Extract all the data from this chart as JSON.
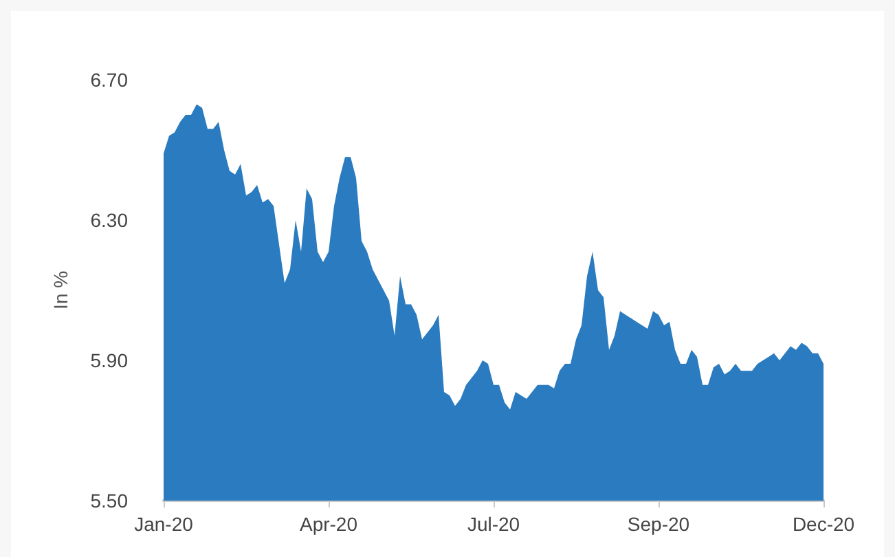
{
  "chart_data": {
    "type": "area",
    "ylabel": "In %",
    "categories": [
      "Jan-20",
      null,
      null,
      null,
      null,
      null,
      null,
      null,
      null,
      null,
      null,
      null,
      null,
      null,
      null,
      null,
      null,
      null,
      null,
      null,
      null,
      null,
      null,
      null,
      null,
      null,
      null,
      null,
      null,
      null,
      "Apr-20",
      null,
      null,
      null,
      null,
      null,
      null,
      null,
      null,
      null,
      null,
      null,
      null,
      null,
      null,
      null,
      null,
      null,
      null,
      null,
      null,
      null,
      null,
      null,
      null,
      null,
      null,
      null,
      null,
      null,
      "Jul-20",
      null,
      null,
      null,
      null,
      null,
      null,
      null,
      null,
      null,
      null,
      null,
      null,
      null,
      null,
      null,
      null,
      null,
      null,
      null,
      null,
      null,
      null,
      null,
      null,
      null,
      null,
      null,
      null,
      null,
      "Sep-20",
      null,
      null,
      null,
      null,
      null,
      null,
      null,
      null,
      null,
      null,
      null,
      null,
      null,
      null,
      null,
      null,
      null,
      null,
      null,
      null,
      null,
      null,
      null,
      null,
      null,
      null,
      null,
      null,
      null,
      "Dec-20"
    ],
    "series": [
      {
        "color": "#2a7bbf",
        "values": [
          6.49,
          6.54,
          6.55,
          6.58,
          6.6,
          6.6,
          6.63,
          6.62,
          6.56,
          6.56,
          6.58,
          6.5,
          6.44,
          6.43,
          6.46,
          6.37,
          6.38,
          6.4,
          6.35,
          6.36,
          6.34,
          6.23,
          6.12,
          6.16,
          6.3,
          6.21,
          6.39,
          6.36,
          6.21,
          6.18,
          6.21,
          6.34,
          6.42,
          6.48,
          6.48,
          6.42,
          6.24,
          6.21,
          6.16,
          6.13,
          6.1,
          6.07,
          5.97,
          6.14,
          6.06,
          6.06,
          6.03,
          5.96,
          5.98,
          6.0,
          6.03,
          5.81,
          5.8,
          5.77,
          5.79,
          5.83,
          5.85,
          5.87,
          5.9,
          5.89,
          5.83,
          5.83,
          5.78,
          5.76,
          5.81,
          5.8,
          5.79,
          5.81,
          5.83,
          5.83,
          5.83,
          5.82,
          5.87,
          5.89,
          5.89,
          5.96,
          6.0,
          6.14,
          6.21,
          6.1,
          6.08,
          5.93,
          5.97,
          6.04,
          6.03,
          6.02,
          6.01,
          6.0,
          5.99,
          6.04,
          6.03,
          6.0,
          6.01,
          5.93,
          5.89,
          5.89,
          5.93,
          5.91,
          5.83,
          5.83,
          5.88,
          5.89,
          5.86,
          5.87,
          5.89,
          5.87,
          5.87,
          5.87,
          5.89,
          5.9,
          5.91,
          5.92,
          5.9,
          5.92,
          5.94,
          5.93,
          5.95,
          5.94,
          5.92,
          5.92,
          5.89
        ]
      }
    ],
    "ylim": [
      5.5,
      6.7
    ],
    "yticks": [
      {
        "value": 5.5,
        "label": "5.50"
      },
      {
        "value": 5.9,
        "label": "5.90"
      },
      {
        "value": 6.3,
        "label": "6.30"
      },
      {
        "value": 6.7,
        "label": "6.70"
      }
    ],
    "marker": "none"
  }
}
